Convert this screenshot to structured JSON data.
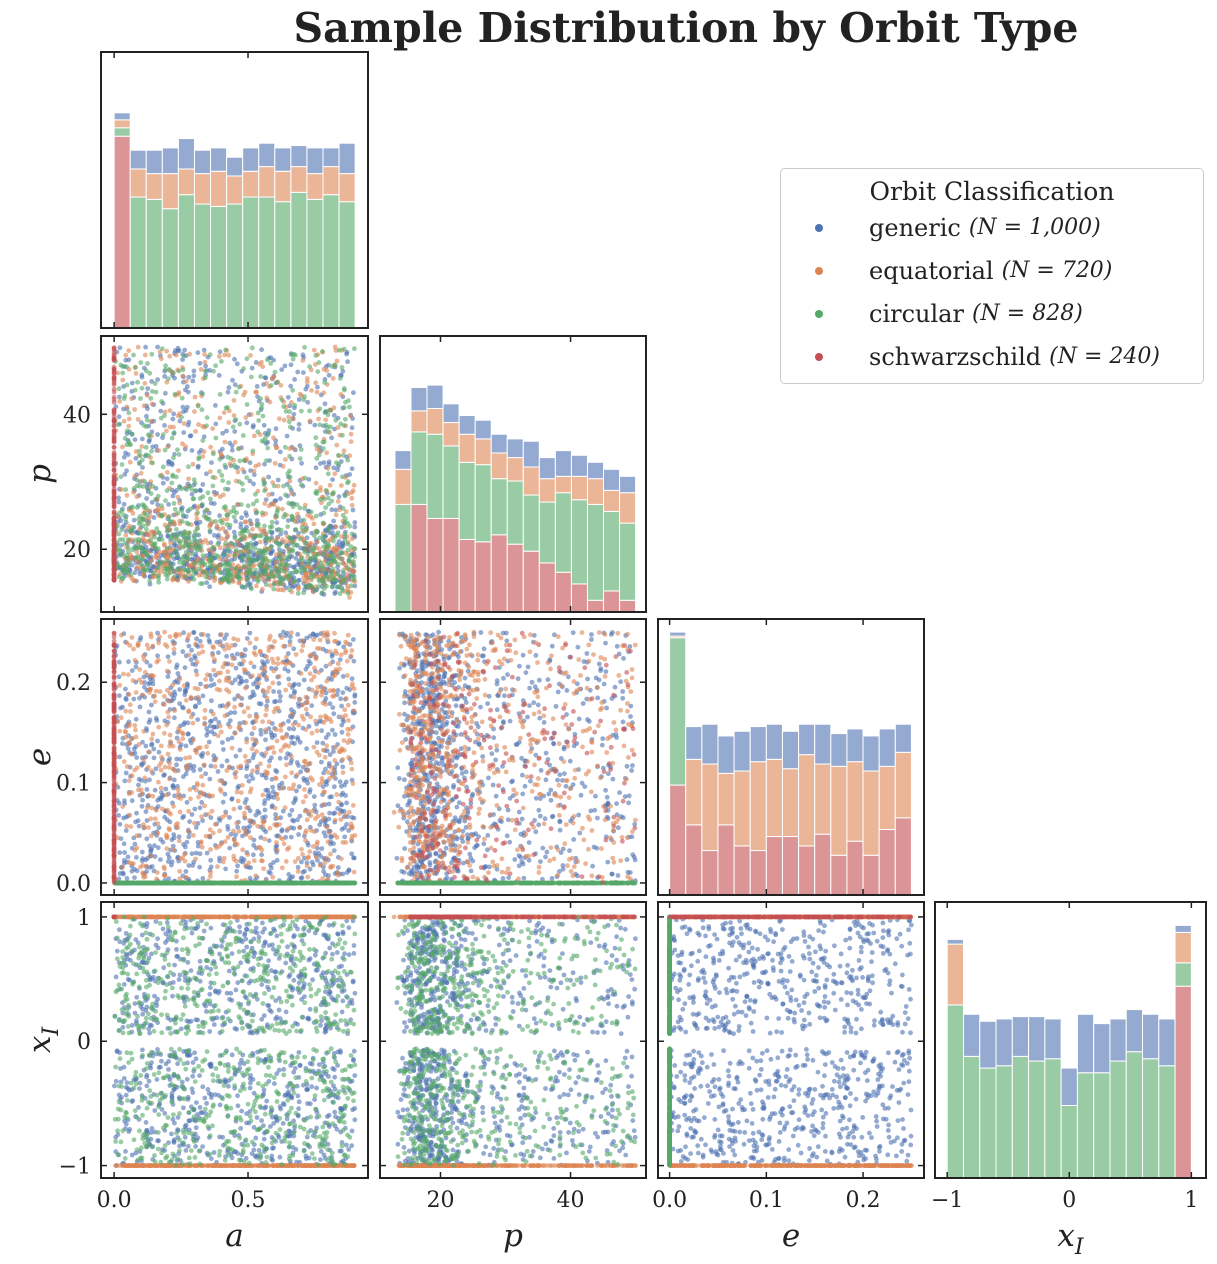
{
  "chart_data": {
    "type": "corner",
    "title": "Sample Distribution by Orbit Type",
    "legend": {
      "title": "Orbit Classification",
      "placement": "top-right",
      "entries": [
        {
          "name": "generic",
          "n_text": "(N = 1,000)"
        },
        {
          "name": "equatorial",
          "n_text": "(N = 720)"
        },
        {
          "name": "circular",
          "n_text": "(N = 828)"
        },
        {
          "name": "schwarzschild",
          "n_text": "(N = 240)"
        }
      ]
    },
    "variables": [
      {
        "key": "a",
        "label": "a",
        "range": [
          -0.049,
          0.948
        ],
        "ticks": [
          0,
          0.5
        ],
        "tick_labels": [
          "0.0",
          "0.5"
        ]
      },
      {
        "key": "p",
        "label": "p",
        "range": [
          10.7,
          51.6
        ],
        "ticks": [
          20,
          40
        ],
        "tick_labels": [
          "20",
          "40"
        ]
      },
      {
        "key": "e",
        "label": "e",
        "range": [
          -0.012,
          0.263
        ],
        "ticks": [
          0,
          0.1,
          0.2
        ],
        "tick_labels": [
          "0.0",
          "0.1",
          "0.2"
        ]
      },
      {
        "key": "x_I",
        "label": "x",
        "label_sub": "I",
        "range": [
          -1.1,
          1.12
        ],
        "ticks": [
          -1,
          0,
          1
        ],
        "tick_labels": [
          "−1",
          "0",
          "1"
        ]
      }
    ],
    "classes": [
      {
        "name": "generic",
        "n": 1000,
        "color": "#4c72b0",
        "a": [
          0,
          0.9
        ],
        "e": [
          0,
          0.25
        ],
        "x_I": [
          -1,
          1
        ],
        "x_I_gap": [
          -0.06,
          0.06
        ],
        "p": [
          12.5,
          50
        ]
      },
      {
        "name": "equatorial",
        "n": 720,
        "color": "#dd8452",
        "a": [
          0,
          0.9
        ],
        "e": [
          0,
          0.25
        ],
        "x_I": "±1",
        "p": [
          12.5,
          50
        ]
      },
      {
        "name": "circular",
        "n": 828,
        "color": "#55a868",
        "a": [
          0,
          0.9
        ],
        "e": 0,
        "x_I": [
          -1,
          1
        ],
        "x_I_gap": [
          -0.06,
          0.06
        ],
        "p": [
          12.5,
          50
        ]
      },
      {
        "name": "schwarzschild",
        "n": 240,
        "color": "#c44e52",
        "a": 0,
        "e": [
          0,
          0.25
        ],
        "x_I": 1,
        "p": [
          15,
          50
        ]
      }
    ],
    "histograms": {
      "stack_order": [
        "schwarzschild",
        "circular",
        "equatorial",
        "generic"
      ],
      "ylim": [
        0,
        118
      ],
      "a": {
        "bin_range": [
          0,
          0.9
        ],
        "bins": 15,
        "stacks": {
          "schwarzschild": [
            82,
            0,
            0,
            0,
            0,
            0,
            0,
            0,
            0,
            0,
            0,
            0,
            0,
            0,
            0
          ],
          "circular": [
            3.6,
            56,
            55,
            51,
            57,
            53,
            52,
            53,
            56,
            56,
            54,
            58,
            55,
            57,
            54
          ],
          "equatorial": [
            3.4,
            12,
            11,
            15,
            11,
            13,
            15,
            12,
            11,
            13,
            13,
            11,
            11,
            12,
            12
          ],
          "generic": [
            3,
            8,
            10,
            11,
            13,
            10,
            10,
            8,
            10,
            10,
            10,
            9,
            11,
            8,
            13
          ]
        }
      },
      "p": {
        "bin_range": [
          13,
          50
        ],
        "bins": 15,
        "stacks": {
          "schwarzschild": [
            0,
            46,
            40,
            40,
            31,
            30,
            33,
            29,
            26,
            21,
            17,
            12,
            5,
            9,
            5
          ],
          "circular": [
            46,
            31,
            36,
            31,
            33,
            33,
            24,
            27,
            24,
            26,
            34,
            36,
            41,
            34,
            33
          ],
          "equatorial": [
            15,
            9,
            11,
            10,
            12,
            11,
            11,
            10,
            12,
            10,
            7,
            10,
            11,
            9,
            13
          ],
          "generic": [
            8,
            10,
            10,
            8,
            8,
            8,
            8,
            8,
            11,
            9,
            11,
            9,
            7,
            9,
            7
          ]
        }
      },
      "e": {
        "bin_range": [
          0,
          0.25
        ],
        "bins": 15,
        "stacks": {
          "schwarzschild": [
            47,
            30,
            19,
            30,
            21,
            19,
            25,
            25,
            21,
            26,
            17,
            23,
            17,
            28,
            33
          ],
          "circular": [
            63,
            0,
            0,
            0,
            0,
            0,
            0,
            0,
            0,
            0,
            0,
            0,
            0,
            0,
            0
          ],
          "equatorial": [
            0.7,
            28,
            37,
            22,
            32,
            38,
            33,
            29,
            39,
            30,
            38,
            34,
            36,
            27,
            28
          ],
          "generic": [
            1.7,
            14,
            17,
            16,
            17,
            15,
            15,
            16,
            13,
            17,
            14,
            14,
            15,
            16,
            12
          ]
        }
      },
      "x_I": {
        "bin_range": [
          -1,
          1
        ],
        "bins": 15,
        "stacks": {
          "schwarzschild": [
            0,
            0,
            0,
            0,
            0,
            0,
            0,
            0,
            0,
            0,
            0,
            0,
            0,
            0,
            82
          ],
          "circular": [
            74,
            52,
            47,
            48,
            52,
            50,
            51,
            31,
            45,
            45,
            50,
            54,
            51,
            48,
            10
          ],
          "equatorial": [
            26,
            0,
            0,
            0,
            0,
            0,
            0,
            0,
            0,
            0,
            0,
            0,
            0,
            0,
            13
          ],
          "generic": [
            2,
            18,
            20,
            20,
            17,
            19,
            17,
            16,
            25,
            21,
            18,
            18,
            19,
            20,
            3
          ]
        }
      }
    }
  }
}
